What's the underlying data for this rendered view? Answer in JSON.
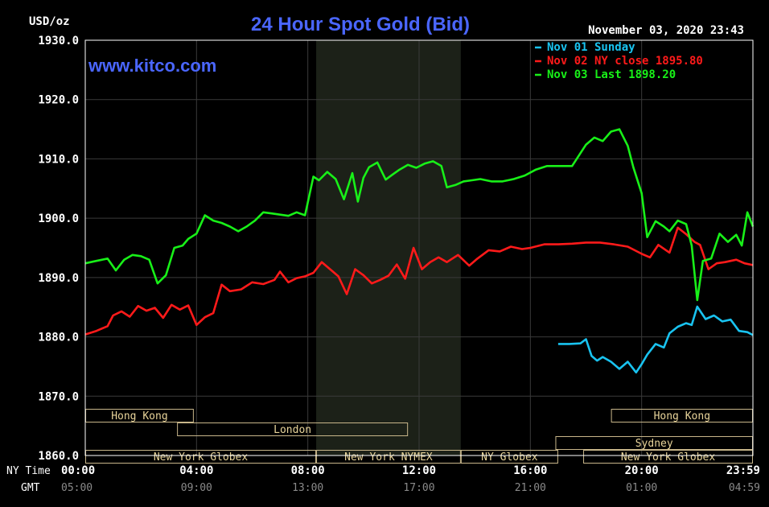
{
  "chart_data": {
    "type": "line",
    "title": "24 Hour Spot Gold (Bid)",
    "units_label": "USD/oz",
    "watermark": "www.kitco.com",
    "timestamp": "November 03, 2020 23:43",
    "ylim": [
      1860,
      1930
    ],
    "y_ticks": [
      "1930.0",
      "1920.0",
      "1910.0",
      "1900.0",
      "1890.0",
      "1880.0",
      "1870.0",
      "1860.0"
    ],
    "y_tick_values": [
      1930,
      1920,
      1910,
      1900,
      1890,
      1880,
      1870,
      1860
    ],
    "x_range_hours": [
      0,
      24
    ],
    "x_axis_ny_label": "NY Time",
    "x_axis_gmt_label": "GMT",
    "x_ticks_ny": [
      "00:00",
      "04:00",
      "08:00",
      "12:00",
      "16:00",
      "20:00",
      "23:59"
    ],
    "x_ticks_gmt": [
      "05:00",
      "09:00",
      "13:00",
      "17:00",
      "21:00",
      "01:00",
      "04:59"
    ],
    "x_tick_hours": [
      0,
      4,
      8,
      12,
      16,
      20,
      24
    ],
    "shaded_region_hours": [
      8.3,
      13.5
    ],
    "legend": [
      {
        "text": "Nov 01 Sunday",
        "color": "#19c3f0"
      },
      {
        "text": "Nov 02 NY close 1895.80",
        "color": "#ff1a1a"
      },
      {
        "text": "Nov 03 Last 1898.20",
        "color": "#18f018"
      }
    ],
    "series": [
      {
        "legend_index": 0,
        "color": "#19c3f0",
        "x": [
          17.0,
          17.4,
          17.8,
          18.0,
          18.2,
          18.4,
          18.6,
          18.9,
          19.2,
          19.5,
          19.8,
          20.0,
          20.2,
          20.5,
          20.8,
          21.0,
          21.3,
          21.6,
          21.8,
          22.0,
          22.3,
          22.6,
          22.9,
          23.2,
          23.5,
          23.8,
          24.0
        ],
        "y": [
          1878.8,
          1878.8,
          1878.9,
          1879.6,
          1876.8,
          1876.0,
          1876.6,
          1875.8,
          1874.6,
          1875.8,
          1874.0,
          1875.4,
          1877.0,
          1878.8,
          1878.2,
          1880.6,
          1881.7,
          1882.3,
          1882.0,
          1885.1,
          1883.0,
          1883.6,
          1882.6,
          1882.9,
          1881.0,
          1880.8,
          1880.3
        ]
      },
      {
        "legend_index": 1,
        "color": "#ff1a1a",
        "x": [
          0.0,
          0.4,
          0.8,
          1.0,
          1.3,
          1.6,
          1.9,
          2.2,
          2.5,
          2.8,
          3.1,
          3.4,
          3.7,
          4.0,
          4.3,
          4.6,
          4.9,
          5.2,
          5.6,
          6.0,
          6.4,
          6.8,
          7.0,
          7.3,
          7.6,
          7.9,
          8.2,
          8.5,
          8.8,
          9.1,
          9.4,
          9.7,
          10.0,
          10.3,
          10.6,
          10.9,
          11.2,
          11.5,
          11.8,
          12.1,
          12.4,
          12.7,
          13.0,
          13.4,
          13.8,
          14.1,
          14.5,
          14.9,
          15.3,
          15.7,
          16.0,
          16.5,
          17.0,
          17.5,
          18.0,
          18.5,
          19.0,
          19.5,
          20.0,
          20.3,
          20.6,
          21.0,
          21.3,
          21.6,
          21.9,
          22.1,
          22.4,
          22.7,
          23.0,
          23.4,
          23.7,
          24.0
        ],
        "y": [
          1880.4,
          1881.0,
          1881.8,
          1883.6,
          1884.3,
          1883.4,
          1885.2,
          1884.4,
          1884.9,
          1883.2,
          1885.4,
          1884.6,
          1885.3,
          1882.0,
          1883.3,
          1884.0,
          1888.8,
          1887.7,
          1888.0,
          1889.2,
          1888.9,
          1889.6,
          1891.0,
          1889.2,
          1889.9,
          1890.2,
          1890.8,
          1892.6,
          1891.4,
          1890.2,
          1887.2,
          1891.4,
          1890.4,
          1889.0,
          1889.6,
          1890.3,
          1892.2,
          1889.8,
          1895.0,
          1891.4,
          1892.6,
          1893.4,
          1892.6,
          1893.8,
          1892.0,
          1893.2,
          1894.6,
          1894.4,
          1895.2,
          1894.8,
          1895.0,
          1895.6,
          1895.6,
          1895.7,
          1895.9,
          1895.9,
          1895.6,
          1895.2,
          1894.0,
          1893.4,
          1895.5,
          1894.2,
          1898.4,
          1897.3,
          1896.0,
          1895.5,
          1891.4,
          1892.4,
          1892.6,
          1893.0,
          1892.4,
          1892.1
        ]
      },
      {
        "legend_index": 2,
        "color": "#18f018",
        "x": [
          0.0,
          0.4,
          0.8,
          1.1,
          1.4,
          1.7,
          2.0,
          2.3,
          2.6,
          2.9,
          3.2,
          3.5,
          3.7,
          4.0,
          4.3,
          4.6,
          4.9,
          5.2,
          5.5,
          5.8,
          6.1,
          6.4,
          6.7,
          7.0,
          7.3,
          7.6,
          7.9,
          8.2,
          8.4,
          8.7,
          9.0,
          9.3,
          9.6,
          9.8,
          10.0,
          10.2,
          10.5,
          10.8,
          11.0,
          11.3,
          11.6,
          11.9,
          12.2,
          12.5,
          12.8,
          13.0,
          13.3,
          13.6,
          13.9,
          14.2,
          14.6,
          15.0,
          15.4,
          15.8,
          16.2,
          16.6,
          17.0,
          17.5,
          18.0,
          18.3,
          18.6,
          18.9,
          19.2,
          19.5,
          19.7,
          20.0,
          20.2,
          20.5,
          20.8,
          21.0,
          21.3,
          21.6,
          21.8,
          22.0,
          22.2,
          22.5,
          22.8,
          23.1,
          23.4,
          23.6,
          23.8,
          24.0
        ],
        "y": [
          1892.4,
          1892.8,
          1893.2,
          1891.2,
          1893.0,
          1893.8,
          1893.6,
          1893.0,
          1889.0,
          1890.4,
          1895.0,
          1895.4,
          1896.5,
          1897.4,
          1900.5,
          1899.6,
          1899.2,
          1898.6,
          1897.8,
          1898.6,
          1899.6,
          1901.0,
          1900.8,
          1900.6,
          1900.4,
          1901.0,
          1900.5,
          1907.0,
          1906.4,
          1907.8,
          1906.6,
          1903.2,
          1907.6,
          1902.8,
          1906.8,
          1908.6,
          1909.4,
          1906.5,
          1907.2,
          1908.2,
          1909.0,
          1908.5,
          1909.2,
          1909.6,
          1908.8,
          1905.2,
          1905.6,
          1906.2,
          1906.4,
          1906.6,
          1906.2,
          1906.2,
          1906.6,
          1907.2,
          1908.2,
          1908.8,
          1908.8,
          1908.8,
          1912.4,
          1913.6,
          1913.0,
          1914.6,
          1915.0,
          1912.2,
          1908.6,
          1904.2,
          1896.8,
          1899.5,
          1898.6,
          1897.8,
          1899.6,
          1899.0,
          1895.4,
          1886.2,
          1892.8,
          1893.2,
          1897.4,
          1896.0,
          1897.2,
          1895.4,
          1901.0,
          1898.6
        ]
      }
    ],
    "sessions": [
      {
        "label": "Hong Kong",
        "row": 0,
        "start_hour": 0.0,
        "end_hour": 3.9
      },
      {
        "label": "Hong Kong",
        "row": 0,
        "start_hour": 18.9,
        "end_hour": 24.0
      },
      {
        "label": "London",
        "row": 1,
        "start_hour": 3.3,
        "end_hour": 11.6
      },
      {
        "label": "Sydney",
        "row": 2,
        "start_hour": 16.9,
        "end_hour": 24.0
      },
      {
        "label": "New York Globex",
        "row": 3,
        "start_hour": 0.0,
        "end_hour": 8.3
      },
      {
        "label": "New York NYMEX",
        "row": 3,
        "start_hour": 8.3,
        "end_hour": 13.5
      },
      {
        "label": "NY Globex",
        "row": 3,
        "start_hour": 13.5,
        "end_hour": 17.0
      },
      {
        "label": "New York Globex",
        "row": 3,
        "start_hour": 17.9,
        "end_hour": 24.0
      }
    ],
    "colors": {
      "background": "#000000",
      "plot_background": "#000000",
      "plot_border": "#ffffff",
      "grid": "#3a3a3a",
      "shaded_region": "#1c2118",
      "title": "#4a66ff",
      "watermark": "#4a66ff",
      "axis_text": "#ffffff",
      "gmt_text": "#8a8a8a",
      "session_box": "#c8b68a",
      "session_text": "#e8d49a"
    }
  }
}
